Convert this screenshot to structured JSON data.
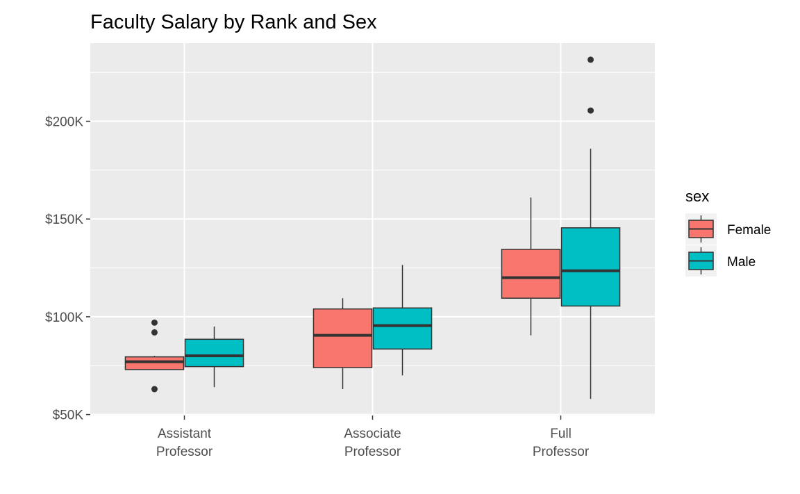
{
  "chart_data": {
    "type": "boxplot",
    "title": "Faculty Salary by Rank and Sex",
    "xlabel": "",
    "ylabel": "",
    "categories": [
      {
        "lines": [
          "Assistant",
          "Professor"
        ]
      },
      {
        "lines": [
          "Associate",
          "Professor"
        ]
      },
      {
        "lines": [
          "Full",
          "Professor"
        ]
      }
    ],
    "y_ticks": [
      {
        "value": 50000,
        "label": "$50K"
      },
      {
        "value": 100000,
        "label": "$100K"
      },
      {
        "value": 150000,
        "label": "$150K"
      },
      {
        "value": 200000,
        "label": "$200K"
      }
    ],
    "ylim": [
      49500,
      240000
    ],
    "grid": true,
    "legend": {
      "title": "sex",
      "position": "right"
    },
    "series": [
      {
        "name": "Female",
        "color": "#F8766D",
        "boxes": [
          {
            "whisker_low": 73000,
            "q1": 73000,
            "median": 77000,
            "q3": 79500,
            "whisker_high": 80000,
            "outliers": [
              63000,
              92000,
              97000
            ]
          },
          {
            "whisker_low": 63000,
            "q1": 74000,
            "median": 90500,
            "q3": 104000,
            "whisker_high": 109500,
            "outliers": []
          },
          {
            "whisker_low": 90500,
            "q1": 109500,
            "median": 120000,
            "q3": 134500,
            "whisker_high": 161000,
            "outliers": []
          }
        ]
      },
      {
        "name": "Male",
        "color": "#00BFC4",
        "boxes": [
          {
            "whisker_low": 64000,
            "q1": 74500,
            "median": 80000,
            "q3": 88500,
            "whisker_high": 95000,
            "outliers": []
          },
          {
            "whisker_low": 70000,
            "q1": 83500,
            "median": 95500,
            "q3": 104500,
            "whisker_high": 126500,
            "outliers": []
          },
          {
            "whisker_low": 58000,
            "q1": 105500,
            "median": 123500,
            "q3": 145500,
            "whisker_high": 186000,
            "outliers": [
              205500,
              231500
            ]
          }
        ]
      }
    ]
  }
}
